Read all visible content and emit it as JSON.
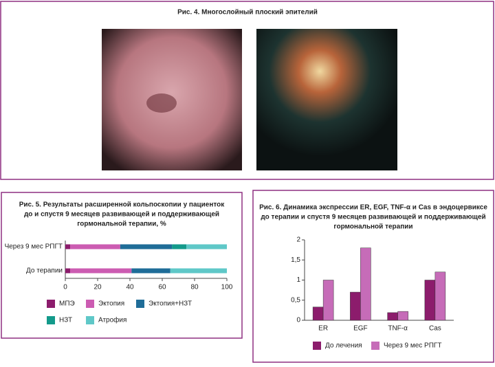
{
  "figure4": {
    "title": "Рис. 4. Многослойный плоский эпителий"
  },
  "chart_data": [
    {
      "type": "bar",
      "orientation": "horizontal",
      "stacked": true,
      "title": [
        "Рис. 5. Результаты расширенной кольпоскопии у пациенток",
        "до и спустя 9 месяцев развивающей и поддерживающей",
        "гормональной терапии, %"
      ],
      "categories": [
        "Через 9 мес РПГТ",
        "До терапии"
      ],
      "series": [
        {
          "name": "МПЭ",
          "color": "#8c1c6c",
          "values": [
            3,
            3
          ]
        },
        {
          "name": "Эктопия",
          "color": "#cc5cb2",
          "values": [
            31,
            38
          ]
        },
        {
          "name": "Эктопия+НЗТ",
          "color": "#1f6d98",
          "values": [
            32,
            24
          ]
        },
        {
          "name": "НЗТ",
          "color": "#139a8b",
          "values": [
            9,
            0
          ]
        },
        {
          "name": "Атрофия",
          "color": "#5fc8c8",
          "values": [
            25,
            35
          ]
        }
      ],
      "xlim": [
        0,
        100
      ],
      "xticks": [
        0,
        20,
        40,
        60,
        80,
        100
      ]
    },
    {
      "type": "bar",
      "orientation": "vertical",
      "stacked": false,
      "title": [
        "Рис. 6. Динамика экспрессии ER, EGF, TNF-α и Cas в эндоцервиксе",
        "до терапии и спустя 9 месяцев развивающей и поддерживающей",
        "гормональной терапии"
      ],
      "categories": [
        "ER",
        "EGF",
        "TNF-α",
        "Cas"
      ],
      "series": [
        {
          "name": "До лечения",
          "color": "#8c1c6c",
          "values": [
            0.33,
            0.7,
            0.19,
            1.0
          ]
        },
        {
          "name": "Через 9 мес РПГТ",
          "color": "#c66cb8",
          "values": [
            1.0,
            1.8,
            0.22,
            1.2
          ]
        }
      ],
      "ylim": [
        0,
        2
      ],
      "yticks": [
        0,
        {
          "value": 0.5,
          "label": "0,5"
        },
        1,
        {
          "value": 1.5,
          "label": "1,5"
        },
        2
      ]
    }
  ]
}
